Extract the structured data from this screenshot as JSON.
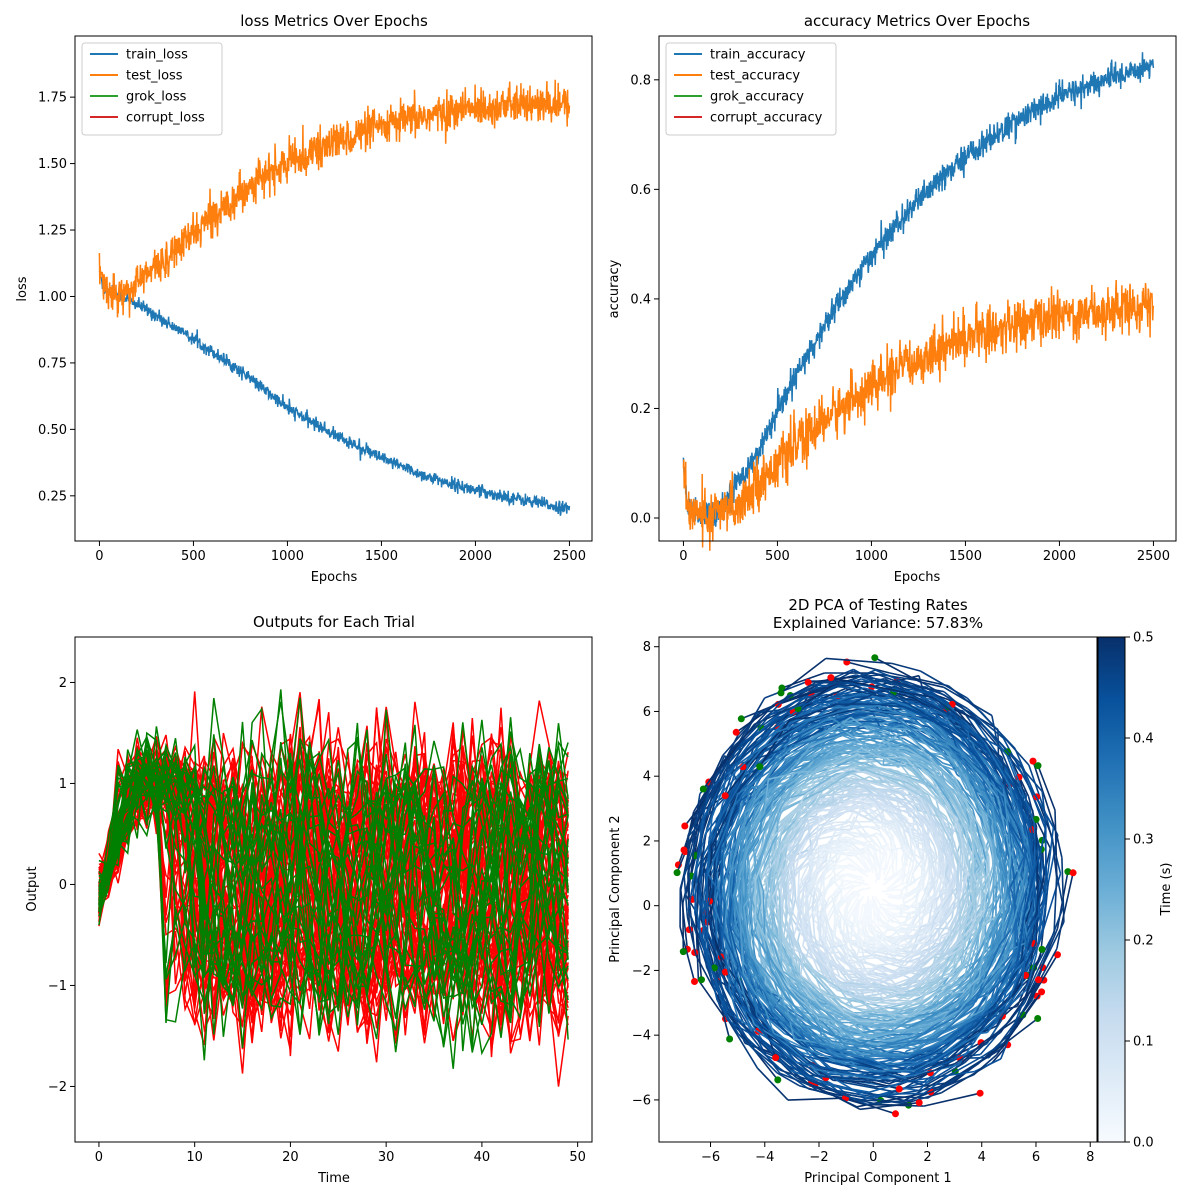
{
  "figure": {
    "background": "#ffffff"
  },
  "chart_data": [
    {
      "id": "loss",
      "type": "line",
      "title": "loss Metrics Over Epochs",
      "xlabel": "Epochs",
      "ylabel": "loss",
      "xlim": [
        -130,
        2620
      ],
      "ylim": [
        0.08,
        1.98
      ],
      "xticks": [
        0,
        500,
        1000,
        1500,
        2000,
        2500
      ],
      "yticks": [
        0.25,
        0.5,
        0.75,
        1.0,
        1.25,
        1.5,
        1.75
      ],
      "ytick_labels": [
        "0.25",
        "0.50",
        "0.75",
        "1.00",
        "1.25",
        "1.50",
        "1.75"
      ],
      "legend_position": "upper-left",
      "series": [
        {
          "name": "train_loss",
          "color": "#1f77b4",
          "noise": 0.012,
          "points": [
            [
              0,
              1.1
            ],
            [
              20,
              1.03
            ],
            [
              100,
              1.01
            ],
            [
              250,
              0.95
            ],
            [
              500,
              0.84
            ],
            [
              750,
              0.72
            ],
            [
              1000,
              0.58
            ],
            [
              1250,
              0.48
            ],
            [
              1500,
              0.39
            ],
            [
              1750,
              0.32
            ],
            [
              2000,
              0.27
            ],
            [
              2250,
              0.235
            ],
            [
              2500,
              0.2
            ]
          ]
        },
        {
          "name": "test_loss",
          "color": "#ff7f0e",
          "noise": 0.035,
          "points": [
            [
              0,
              1.12
            ],
            [
              20,
              1.04
            ],
            [
              100,
              1.0
            ],
            [
              200,
              1.05
            ],
            [
              400,
              1.17
            ],
            [
              600,
              1.3
            ],
            [
              800,
              1.42
            ],
            [
              1000,
              1.5
            ],
            [
              1250,
              1.58
            ],
            [
              1500,
              1.64
            ],
            [
              1750,
              1.68
            ],
            [
              2000,
              1.71
            ],
            [
              2250,
              1.72
            ],
            [
              2500,
              1.72
            ]
          ]
        },
        {
          "name": "grok_loss",
          "color": "#2ca02c",
          "points": []
        },
        {
          "name": "corrupt_loss",
          "color": "#d62728",
          "points": []
        }
      ]
    },
    {
      "id": "accuracy",
      "type": "line",
      "title": "accuracy Metrics Over Epochs",
      "xlabel": "Epochs",
      "ylabel": "accuracy",
      "xlim": [
        -130,
        2620
      ],
      "ylim": [
        -0.042,
        0.88
      ],
      "xticks": [
        0,
        500,
        1000,
        1500,
        2000,
        2500
      ],
      "yticks": [
        0.0,
        0.2,
        0.4,
        0.6,
        0.8
      ],
      "ytick_labels": [
        "0.0",
        "0.2",
        "0.4",
        "0.6",
        "0.8"
      ],
      "legend_position": "upper-left",
      "series": [
        {
          "name": "train_accuracy",
          "color": "#1f77b4",
          "noise": 0.012,
          "points": [
            [
              0,
              0.1
            ],
            [
              20,
              0.02
            ],
            [
              100,
              0.005
            ],
            [
              200,
              0.02
            ],
            [
              400,
              0.12
            ],
            [
              600,
              0.26
            ],
            [
              800,
              0.38
            ],
            [
              1000,
              0.48
            ],
            [
              1250,
              0.58
            ],
            [
              1500,
              0.66
            ],
            [
              1750,
              0.72
            ],
            [
              2000,
              0.77
            ],
            [
              2250,
              0.8
            ],
            [
              2500,
              0.83
            ]
          ]
        },
        {
          "name": "test_accuracy",
          "color": "#ff7f0e",
          "noise": 0.022,
          "points": [
            [
              0,
              0.09
            ],
            [
              20,
              0.02
            ],
            [
              150,
              0.0
            ],
            [
              300,
              0.03
            ],
            [
              500,
              0.1
            ],
            [
              750,
              0.18
            ],
            [
              1000,
              0.24
            ],
            [
              1250,
              0.29
            ],
            [
              1500,
              0.33
            ],
            [
              1750,
              0.35
            ],
            [
              2000,
              0.37
            ],
            [
              2250,
              0.38
            ],
            [
              2500,
              0.39
            ]
          ]
        },
        {
          "name": "grok_accuracy",
          "color": "#2ca02c",
          "points": []
        },
        {
          "name": "corrupt_accuracy",
          "color": "#d62728",
          "points": []
        }
      ]
    },
    {
      "id": "outputs",
      "type": "line",
      "title": "Outputs for Each Trial",
      "xlabel": "Time",
      "ylabel": "Output",
      "xlim": [
        -2.5,
        51.5
      ],
      "ylim": [
        -2.55,
        2.45
      ],
      "xticks": [
        0,
        10,
        20,
        30,
        40,
        50
      ],
      "yticks": [
        -2,
        -1,
        0,
        1,
        2
      ],
      "ytick_labels": [
        "−2",
        "−1",
        "0",
        "1",
        "2"
      ],
      "time_steps": 50,
      "trial_groups": [
        {
          "label": "corrupt",
          "color": "#ff0000",
          "trials": 70
        },
        {
          "label": "grok",
          "color": "#008000",
          "trials": 30
        }
      ],
      "output_range": [
        -2.3,
        2.25
      ]
    },
    {
      "id": "pca",
      "type": "line",
      "title": "2D PCA of Testing Rates",
      "subtitle": "Explained Variance: 57.83%",
      "xlabel": "Principal Component 1",
      "ylabel": "Principal Component 2",
      "xlim": [
        -7.9,
        8.25
      ],
      "ylim": [
        -7.3,
        8.3
      ],
      "xticks": [
        -6,
        -4,
        -2,
        0,
        2,
        4,
        6,
        8
      ],
      "xtick_labels": [
        "−6",
        "−4",
        "−2",
        "0",
        "2",
        "4",
        "6",
        "8"
      ],
      "yticks": [
        -6,
        -4,
        -2,
        0,
        2,
        4,
        6,
        8
      ],
      "ytick_labels": [
        "−6",
        "−4",
        "−2",
        "0",
        "2",
        "4",
        "6",
        "8"
      ],
      "center": [
        0.0,
        0.55
      ],
      "radius_x": 7.1,
      "radius_y": 6.9,
      "trajectories": 100,
      "colormap": "Blues",
      "colorbar": {
        "label": "Time (s)",
        "range": [
          0.0,
          0.5
        ],
        "ticks": [
          0.0,
          0.1,
          0.2,
          0.3,
          0.4,
          0.5
        ],
        "tick_labels": [
          "0.0",
          "0.1",
          "0.2",
          "0.3",
          "0.4",
          "0.5"
        ],
        "colors": [
          "#f7fbff",
          "#deebf7",
          "#c6dbef",
          "#9ecae1",
          "#6baed6",
          "#4292c6",
          "#2171b5",
          "#08519c",
          "#08306b"
        ]
      },
      "end_markers": {
        "colors": [
          "#ff0000",
          "#008000"
        ]
      }
    }
  ]
}
